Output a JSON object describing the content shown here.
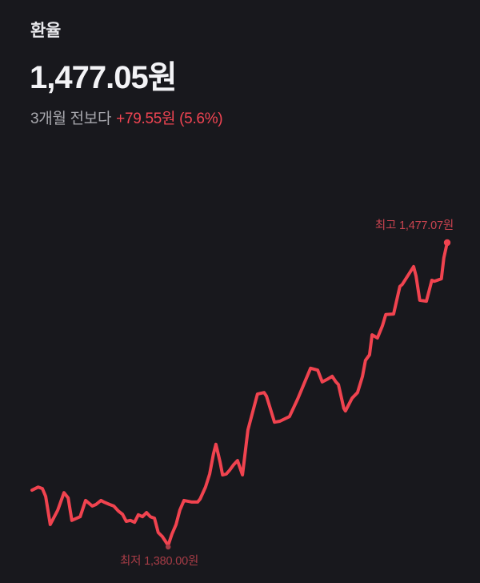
{
  "header": {
    "title": "환율",
    "price": "1,477.05원",
    "compare_label": "3개월 전보다",
    "change_text": "+79.55원 (5.6%)"
  },
  "chart": {
    "high_label": "최고 1,477.07원",
    "low_label": "최저 1,380.00원"
  },
  "colors": {
    "background": "#18181d",
    "line_red": "#f0434f",
    "accent_red": "#f04452",
    "high_label_red": "#cb4450",
    "low_label_red": "#a63c46",
    "title_white": "#e8e8ec",
    "price_white": "#f3f3f6",
    "subtitle_gray": "#a8a8ae"
  },
  "chart_data": {
    "type": "line",
    "unit": "원",
    "period": "3개월",
    "ylim": [
      1380.0,
      1477.07
    ],
    "current_value": 1477.05,
    "change_value": 79.55,
    "change_percent": 5.6,
    "high": {
      "label": "최고",
      "value": 1477.07
    },
    "low": {
      "label": "최저",
      "value": 1380.0
    },
    "x_axis": "time_fraction_of_3_months",
    "grid": false,
    "legend": false,
    "points": [
      [
        0.0,
        1397.7
      ],
      [
        0.015,
        1398.7
      ],
      [
        0.025,
        1398.2
      ],
      [
        0.033,
        1395.7
      ],
      [
        0.044,
        1386.7
      ],
      [
        0.062,
        1391.3
      ],
      [
        0.077,
        1396.9
      ],
      [
        0.087,
        1395.2
      ],
      [
        0.096,
        1388.0
      ],
      [
        0.116,
        1389.2
      ],
      [
        0.129,
        1394.4
      ],
      [
        0.145,
        1392.6
      ],
      [
        0.154,
        1393.1
      ],
      [
        0.166,
        1394.4
      ],
      [
        0.173,
        1393.9
      ],
      [
        0.187,
        1393.1
      ],
      [
        0.197,
        1392.6
      ],
      [
        0.208,
        1391.0
      ],
      [
        0.218,
        1390.0
      ],
      [
        0.227,
        1387.7
      ],
      [
        0.237,
        1388.0
      ],
      [
        0.247,
        1387.4
      ],
      [
        0.256,
        1389.8
      ],
      [
        0.266,
        1389.2
      ],
      [
        0.276,
        1390.5
      ],
      [
        0.285,
        1389.2
      ],
      [
        0.295,
        1388.7
      ],
      [
        0.304,
        1384.1
      ],
      [
        0.314,
        1382.8
      ],
      [
        0.328,
        1380.0
      ],
      [
        0.337,
        1383.6
      ],
      [
        0.347,
        1386.7
      ],
      [
        0.356,
        1391.3
      ],
      [
        0.366,
        1394.4
      ],
      [
        0.385,
        1393.9
      ],
      [
        0.399,
        1393.9
      ],
      [
        0.405,
        1394.9
      ],
      [
        0.418,
        1398.7
      ],
      [
        0.428,
        1402.9
      ],
      [
        0.437,
        1409.3
      ],
      [
        0.443,
        1412.4
      ],
      [
        0.453,
        1406.7
      ],
      [
        0.459,
        1402.6
      ],
      [
        0.468,
        1402.9
      ],
      [
        0.476,
        1404.1
      ],
      [
        0.486,
        1405.9
      ],
      [
        0.495,
        1407.2
      ],
      [
        0.507,
        1402.6
      ],
      [
        0.52,
        1417.0
      ],
      [
        0.543,
        1428.5
      ],
      [
        0.559,
        1429.0
      ],
      [
        0.565,
        1427.8
      ],
      [
        0.584,
        1419.5
      ],
      [
        0.597,
        1419.8
      ],
      [
        0.62,
        1421.3
      ],
      [
        0.64,
        1427.0
      ],
      [
        0.671,
        1436.8
      ],
      [
        0.688,
        1436.2
      ],
      [
        0.699,
        1432.4
      ],
      [
        0.713,
        1433.4
      ],
      [
        0.723,
        1434.2
      ],
      [
        0.732,
        1432.4
      ],
      [
        0.738,
        1431.6
      ],
      [
        0.751,
        1423.9
      ],
      [
        0.755,
        1423.1
      ],
      [
        0.771,
        1427.2
      ],
      [
        0.784,
        1429.0
      ],
      [
        0.796,
        1434.2
      ],
      [
        0.803,
        1439.3
      ],
      [
        0.813,
        1441.1
      ],
      [
        0.819,
        1447.5
      ],
      [
        0.832,
        1446.5
      ],
      [
        0.844,
        1450.4
      ],
      [
        0.852,
        1454.0
      ],
      [
        0.871,
        1454.2
      ],
      [
        0.886,
        1463.0
      ],
      [
        0.892,
        1463.7
      ],
      [
        0.919,
        1469.4
      ],
      [
        0.925,
        1466.3
      ],
      [
        0.934,
        1458.6
      ],
      [
        0.95,
        1458.3
      ],
      [
        0.963,
        1465.0
      ],
      [
        0.969,
        1464.7
      ],
      [
        0.986,
        1465.5
      ],
      [
        0.992,
        1472.2
      ],
      [
        1.0,
        1477.07
      ]
    ]
  }
}
